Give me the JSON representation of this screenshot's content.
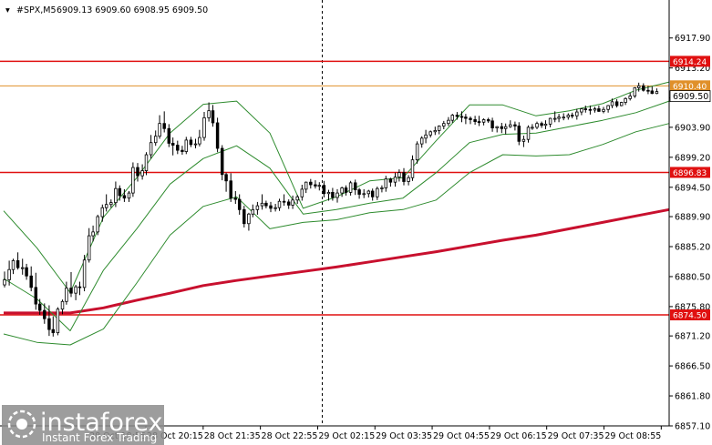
{
  "header": {
    "symbol": "#SPX,M5",
    "ohlc": "6909.13 6909.60 6908.95 6909.50"
  },
  "watermark": {
    "brand": "instaforex",
    "tagline": "Instant Forex Trading"
  },
  "colors": {
    "background": "#ffffff",
    "candle": "#000000",
    "bollinger": "#2e8b2e",
    "moving_average": "#c8102e",
    "level_line": "#e01010",
    "bid_line": "#e0902a",
    "watermark_bg": "#8c8c8c"
  },
  "chart_data": {
    "type": "line",
    "timeframe": "M5",
    "title": "#SPX,M5",
    "xlabel": "",
    "ylabel": "",
    "ylim": [
      6857.1,
      6921.0
    ],
    "y_ticks": [
      "6917.90",
      "6913.20",
      "6908.50",
      "6903.90",
      "6899.20",
      "6894.50",
      "6889.90",
      "6885.20",
      "6880.50",
      "6875.80",
      "6871.20",
      "6866.50",
      "6861.80",
      "6857.10"
    ],
    "x_ticks": [
      "28 Oct 18:55",
      "28 Oct 20:15",
      "28 Oct 21:35",
      "28 Oct 22:55",
      "29 Oct 02:15",
      "29 Oct 03:35",
      "29 Oct 04:55",
      "29 Oct 06:15",
      "29 Oct 07:35",
      "29 Oct 08:55"
    ],
    "x_tick_fraction": [
      0.2137,
      0.2998,
      0.3858,
      0.4719,
      0.5579,
      0.6439,
      0.73,
      0.816,
      0.9021,
      0.9881
    ],
    "current_price": "6909.50",
    "bid_line_label": "6910.40",
    "levels": [
      {
        "value": 6914.24,
        "label": "6914.24"
      },
      {
        "value": 6896.83,
        "label": "6896.83"
      },
      {
        "value": 6874.5,
        "label": "6874.50"
      }
    ],
    "series": [
      {
        "type": "candlestick",
        "t": [
          0.0,
          0.007,
          0.013,
          0.02,
          0.027,
          0.033,
          0.04,
          0.047,
          0.053,
          0.06,
          0.067,
          0.073,
          0.08,
          0.087,
          0.093,
          0.1,
          0.107,
          0.113,
          0.12,
          0.127,
          0.133,
          0.14,
          0.147,
          0.153,
          0.16,
          0.167,
          0.173,
          0.18,
          0.187,
          0.193,
          0.2,
          0.207,
          0.213,
          0.22,
          0.227,
          0.233,
          0.24,
          0.247,
          0.253,
          0.26,
          0.267,
          0.273,
          0.28,
          0.287,
          0.293,
          0.3,
          0.307,
          0.313,
          0.32,
          0.327,
          0.333,
          0.34,
          0.347,
          0.353,
          0.36,
          0.367,
          0.373,
          0.38,
          0.387,
          0.393,
          0.4,
          0.407,
          0.413,
          0.42,
          0.427,
          0.433,
          0.44,
          0.447,
          0.453,
          0.46,
          0.467,
          0.473,
          0.48,
          0.487,
          0.493,
          0.5,
          0.507,
          0.513,
          0.52,
          0.527,
          0.533,
          0.54,
          0.547,
          0.553,
          0.56,
          0.567,
          0.573,
          0.58,
          0.587,
          0.593,
          0.6,
          0.607,
          0.613,
          0.62,
          0.627,
          0.633,
          0.64,
          0.647,
          0.653,
          0.66,
          0.667,
          0.673,
          0.68,
          0.687,
          0.693,
          0.7,
          0.707,
          0.713,
          0.72,
          0.727,
          0.733,
          0.74,
          0.747,
          0.753,
          0.76,
          0.767,
          0.773,
          0.78,
          0.787,
          0.793,
          0.8,
          0.807,
          0.813,
          0.82,
          0.827,
          0.833,
          0.84,
          0.847,
          0.853,
          0.86,
          0.867,
          0.873,
          0.88,
          0.887,
          0.893,
          0.9,
          0.907,
          0.913,
          0.92,
          0.927,
          0.933,
          0.94,
          0.947,
          0.953,
          0.96,
          0.967,
          0.973,
          0.98,
          0.987,
          0.993,
          1.0
        ],
        "o": [
          6879.2,
          6880.0,
          6881.6,
          6883.0,
          6881.9,
          6881.9,
          6880.6,
          6878.8,
          6876.2,
          6875.2,
          6873.9,
          6872.2,
          6871.7,
          6875.4,
          6876.6,
          6878.7,
          6877.9,
          6878.9,
          6878.8,
          6883.1,
          6886.9,
          6887.5,
          6889.9,
          6891.3,
          6891.8,
          6892.1,
          6894.3,
          6893.2,
          6892.8,
          6893.6,
          6897.6,
          6896.3,
          6897.1,
          6899.6,
          6901.5,
          6902.5,
          6904.5,
          6903.7,
          6901.4,
          6901.1,
          6900.3,
          6900.1,
          6901.9,
          6901.2,
          6901.3,
          6902.3,
          6905.4,
          6906.5,
          6904.6,
          6900.6,
          6896.5,
          6895.5,
          6892.8,
          6892.6,
          6891.0,
          6888.8,
          6890.3,
          6891.0,
          6891.6,
          6892.0,
          6891.6,
          6891.2,
          6891.3,
          6892.3,
          6892.2,
          6891.7,
          6892.5,
          6893.0,
          6894.2,
          6895.3,
          6894.9,
          6894.7,
          6894.8,
          6893.5,
          6893.7,
          6892.9,
          6893.6,
          6894.4,
          6893.7,
          6895.2,
          6894.1,
          6893.4,
          6893.5,
          6893.9,
          6893.0,
          6894.3,
          6894.4,
          6895.8,
          6895.3,
          6896.1,
          6896.8,
          6895.4,
          6896.0,
          6898.8,
          6901.3,
          6902.2,
          6902.7,
          6903.2,
          6903.4,
          6904.1,
          6904.5,
          6905.0,
          6905.8,
          6905.6,
          6905.5,
          6905.3,
          6905.1,
          6904.8,
          6904.7,
          6905.1,
          6904.9,
          6903.8,
          6904.0,
          6903.7,
          6904.0,
          6904.3,
          6904.1,
          6901.7,
          6902.0,
          6903.9,
          6903.9,
          6904.5,
          6904.2,
          6904.4,
          6905.3,
          6905.3,
          6905.5,
          6905.5,
          6905.8,
          6905.7,
          6906.3,
          6906.8,
          6906.7,
          6906.6,
          6906.8,
          6906.4,
          6906.7,
          6907.3,
          6907.9,
          6907.3,
          6907.8,
          6908.4,
          6908.8,
          6910.1,
          6910.4,
          6909.7,
          6909.6,
          6909.2
        ],
        "h": [
          6881.3,
          6883.0,
          6883.3,
          6884.3,
          6883.3,
          6882.5,
          6882.1,
          6881.1,
          6877.0,
          6876.3,
          6876.0,
          6874.3,
          6875.7,
          6876.9,
          6879.7,
          6881.2,
          6879.2,
          6879.7,
          6883.9,
          6888.1,
          6888.5,
          6890.2,
          6891.8,
          6893.4,
          6892.6,
          6895.4,
          6894.8,
          6894.2,
          6893.9,
          6898.4,
          6898.3,
          6898.1,
          6900.0,
          6902.7,
          6903.4,
          6905.8,
          6906.4,
          6904.4,
          6902.3,
          6901.8,
          6901.0,
          6902.4,
          6902.4,
          6902.1,
          6903.5,
          6906.3,
          6907.8,
          6907.4,
          6905.4,
          6901.1,
          6896.8,
          6896.7,
          6893.9,
          6893.4,
          6891.6,
          6890.5,
          6891.8,
          6892.2,
          6893.4,
          6892.4,
          6892.2,
          6891.9,
          6892.7,
          6893.4,
          6892.6,
          6893.2,
          6893.3,
          6894.9,
          6895.4,
          6895.8,
          6895.6,
          6895.3,
          6895.5,
          6894.1,
          6894.4,
          6894.2,
          6894.6,
          6894.8,
          6895.5,
          6895.7,
          6894.4,
          6894.2,
          6894.1,
          6894.3,
          6894.6,
          6894.8,
          6896.3,
          6896.0,
          6896.8,
          6897.3,
          6897.5,
          6896.4,
          6899.5,
          6901.7,
          6902.5,
          6903.5,
          6903.4,
          6904.0,
          6904.2,
          6904.9,
          6905.5,
          6906.0,
          6906.3,
          6906.4,
          6906.0,
          6905.6,
          6905.7,
          6905.7,
          6905.3,
          6905.4,
          6905.4,
          6904.1,
          6904.6,
          6904.5,
          6905.0,
          6904.8,
          6904.7,
          6902.6,
          6904.2,
          6904.4,
          6904.8,
          6904.8,
          6905.0,
          6905.4,
          6906.4,
          6906.0,
          6906.1,
          6906.1,
          6906.2,
          6906.8,
          6906.9,
          6907.3,
          6907.3,
          6907.1,
          6907.3,
          6907.1,
          6907.4,
          6908.4,
          6908.3,
          6907.9,
          6908.6,
          6909.3,
          6910.2,
          6910.9,
          6910.8,
          6910.4,
          6910.3,
          6910.0
        ],
        "l": [
          6878.8,
          6879.1,
          6880.9,
          6881.6,
          6880.8,
          6880.0,
          6878.2,
          6875.3,
          6874.5,
          6873.1,
          6871.2,
          6871.1,
          6871.3,
          6874.6,
          6876.1,
          6877.3,
          6876.8,
          6877.6,
          6878.2,
          6882.7,
          6886.0,
          6887.0,
          6889.1,
          6890.7,
          6891.3,
          6891.4,
          6892.4,
          6892.2,
          6892.2,
          6893.0,
          6895.4,
          6895.7,
          6896.4,
          6899.0,
          6901.0,
          6902.1,
          6903.1,
          6900.8,
          6899.5,
          6899.7,
          6899.6,
          6899.7,
          6900.8,
          6900.6,
          6900.9,
          6901.8,
          6904.8,
          6904.0,
          6900.0,
          6895.6,
          6893.8,
          6892.2,
          6891.9,
          6890.2,
          6888.2,
          6887.7,
          6889.8,
          6890.2,
          6891.0,
          6891.2,
          6890.6,
          6890.7,
          6890.8,
          6891.6,
          6891.1,
          6891.1,
          6891.9,
          6892.4,
          6893.6,
          6894.3,
          6894.3,
          6894.0,
          6892.9,
          6892.4,
          6892.4,
          6892.1,
          6893.0,
          6893.2,
          6893.2,
          6893.3,
          6892.7,
          6892.8,
          6892.9,
          6892.4,
          6892.5,
          6893.7,
          6893.8,
          6894.6,
          6894.6,
          6895.4,
          6894.8,
          6894.8,
          6895.5,
          6898.2,
          6900.7,
          6901.4,
          6902.3,
          6902.7,
          6902.8,
          6903.6,
          6904.1,
          6904.6,
          6905.1,
          6904.7,
          6904.4,
          6904.4,
          6904.3,
          6904.1,
          6904.2,
          6904.6,
          6903.2,
          6903.1,
          6903.0,
          6902.8,
          6903.8,
          6903.4,
          6901.1,
          6900.8,
          6901.5,
          6903.5,
          6903.6,
          6903.8,
          6903.6,
          6903.9,
          6904.7,
          6904.7,
          6905.0,
          6905.1,
          6905.3,
          6905.1,
          6905.8,
          6906.2,
          6905.9,
          6906.2,
          6906.3,
          6906.1,
          6906.2,
          6906.9,
          6907.0,
          6907.2,
          6907.4,
          6908.1,
          6908.5,
          6909.5,
          6909.5,
          6909.1,
          6909.1,
          6909.1
        ],
        "c": [
          6880.0,
          6881.6,
          6883.0,
          6881.9,
          6881.9,
          6880.6,
          6878.8,
          6876.2,
          6875.2,
          6873.9,
          6872.2,
          6871.7,
          6875.4,
          6876.6,
          6878.7,
          6877.9,
          6878.9,
          6878.8,
          6883.1,
          6886.9,
          6887.5,
          6889.9,
          6891.3,
          6891.8,
          6892.1,
          6894.3,
          6893.2,
          6892.8,
          6893.6,
          6897.6,
          6896.3,
          6897.1,
          6899.6,
          6901.5,
          6902.5,
          6904.5,
          6903.7,
          6901.4,
          6901.1,
          6900.3,
          6900.1,
          6901.9,
          6901.2,
          6901.3,
          6902.3,
          6905.4,
          6906.5,
          6904.6,
          6900.6,
          6896.5,
          6895.5,
          6892.8,
          6892.6,
          6891.0,
          6888.8,
          6890.3,
          6891.0,
          6891.6,
          6892.0,
          6891.6,
          6891.2,
          6891.3,
          6892.3,
          6892.2,
          6891.7,
          6892.5,
          6893.0,
          6894.2,
          6895.3,
          6894.9,
          6894.7,
          6894.8,
          6893.5,
          6893.7,
          6892.9,
          6893.6,
          6894.4,
          6893.7,
          6895.2,
          6894.1,
          6893.4,
          6893.5,
          6893.9,
          6893.0,
          6894.3,
          6894.4,
          6895.8,
          6895.3,
          6896.1,
          6896.8,
          6895.4,
          6896.0,
          6898.8,
          6901.3,
          6902.2,
          6902.7,
          6903.2,
          6903.4,
          6904.1,
          6904.5,
          6905.0,
          6905.8,
          6905.6,
          6905.5,
          6905.3,
          6905.1,
          6904.8,
          6904.7,
          6905.1,
          6904.9,
          6903.8,
          6904.0,
          6903.7,
          6904.0,
          6904.3,
          6904.1,
          6901.7,
          6902.0,
          6903.9,
          6903.9,
          6904.5,
          6904.2,
          6904.4,
          6905.3,
          6905.3,
          6905.5,
          6905.5,
          6905.8,
          6905.7,
          6906.3,
          6906.8,
          6906.7,
          6906.6,
          6906.8,
          6906.4,
          6906.7,
          6907.3,
          6907.9,
          6907.3,
          6907.8,
          6908.4,
          6908.8,
          6910.1,
          6910.4,
          6909.7,
          6909.6,
          6909.2,
          6909.5
        ]
      },
      {
        "type": "moving_average",
        "t": [
          0.0,
          0.05,
          0.1,
          0.15,
          0.2,
          0.25,
          0.3,
          0.35,
          0.4,
          0.45,
          0.5,
          0.55,
          0.6,
          0.65,
          0.7,
          0.75,
          0.8,
          0.85,
          0.9,
          0.95,
          1.0
        ],
        "values": [
          6874.8,
          6874.8,
          6874.8,
          6875.6,
          6876.8,
          6877.9,
          6879.1,
          6879.9,
          6880.6,
          6881.3,
          6882.0,
          6882.8,
          6883.6,
          6884.4,
          6885.3,
          6886.2,
          6887.0,
          6888.0,
          6889.0,
          6890.0,
          6891.0
        ]
      },
      {
        "type": "bollinger_upper",
        "t": [
          0.0,
          0.05,
          0.1,
          0.15,
          0.2,
          0.25,
          0.3,
          0.35,
          0.4,
          0.45,
          0.5,
          0.55,
          0.6,
          0.65,
          0.7,
          0.75,
          0.8,
          0.85,
          0.9,
          0.95,
          1.0
        ],
        "values": [
          6890.8,
          6885.0,
          6878.0,
          6889.8,
          6896.0,
          6903.0,
          6907.5,
          6908.0,
          6903.0,
          6891.2,
          6893.0,
          6895.5,
          6896.0,
          6901.8,
          6907.4,
          6907.4,
          6905.7,
          6906.5,
          6907.6,
          6909.7,
          6911.0
        ]
      },
      {
        "type": "bollinger_middle",
        "t": [
          0.0,
          0.05,
          0.1,
          0.15,
          0.2,
          0.25,
          0.3,
          0.35,
          0.4,
          0.45,
          0.5,
          0.55,
          0.6,
          0.65,
          0.7,
          0.75,
          0.8,
          0.85,
          0.9,
          0.95,
          1.0
        ],
        "values": [
          6880.2,
          6877.0,
          6872.0,
          6881.5,
          6888.0,
          6895.0,
          6899.0,
          6901.0,
          6897.5,
          6890.3,
          6891.0,
          6892.0,
          6892.8,
          6896.8,
          6901.5,
          6902.8,
          6903.0,
          6904.0,
          6905.0,
          6906.2,
          6908.0
        ]
      },
      {
        "type": "bollinger_lower",
        "t": [
          0.0,
          0.05,
          0.1,
          0.15,
          0.2,
          0.25,
          0.3,
          0.35,
          0.4,
          0.45,
          0.5,
          0.55,
          0.6,
          0.65,
          0.7,
          0.75,
          0.8,
          0.85,
          0.9,
          0.95,
          1.0
        ],
        "values": [
          6871.5,
          6870.2,
          6869.8,
          6872.3,
          6879.5,
          6887.0,
          6891.5,
          6893.0,
          6888.0,
          6889.0,
          6889.4,
          6890.5,
          6891.0,
          6892.5,
          6896.8,
          6899.6,
          6899.4,
          6899.6,
          6901.2,
          6903.2,
          6904.5
        ]
      }
    ]
  }
}
